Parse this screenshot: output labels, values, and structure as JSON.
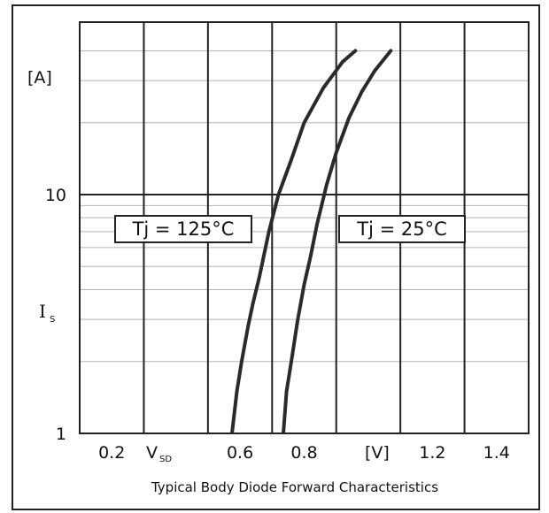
{
  "chart_data": {
    "type": "line",
    "title": "",
    "caption": "Typical Body Diode Forward Characteristics",
    "xaxis": {
      "symbol": "V",
      "symbol_sub": "SD",
      "unit": "[V]",
      "range": [
        0.1,
        1.5
      ],
      "tick_values": [
        0.2,
        0.6,
        0.8,
        1.2,
        1.4
      ],
      "tick_labels": [
        "0.2",
        "0.6",
        "0.8",
        "1.2",
        "1.4"
      ],
      "gridlines": [
        0.3,
        0.5,
        0.7,
        0.9,
        1.1,
        1.3
      ]
    },
    "yaxis": {
      "scale": "log",
      "symbol": "I",
      "symbol_sub": "S",
      "unit": "[A]",
      "range": [
        1,
        40
      ],
      "tick_values": [
        1,
        10
      ],
      "tick_labels": [
        "1",
        "10"
      ]
    },
    "grid": true,
    "series": [
      {
        "name": "Tj = 125°C",
        "x": [
          0.575,
          0.59,
          0.605,
          0.625,
          0.64,
          0.66,
          0.69,
          0.72,
          0.76,
          0.8,
          0.86,
          0.92,
          0.96
        ],
        "y": [
          1,
          1.5,
          2.0,
          2.8,
          3.5,
          4.5,
          7.0,
          10,
          14,
          20,
          28,
          36,
          40
        ]
      },
      {
        "name": "Tj = 25°C",
        "x": [
          0.735,
          0.745,
          0.76,
          0.78,
          0.8,
          0.82,
          0.84,
          0.87,
          0.9,
          0.94,
          0.98,
          1.02,
          1.07
        ],
        "y": [
          1,
          1.5,
          2.0,
          3.0,
          4.2,
          5.5,
          7.5,
          11,
          15,
          21,
          27,
          33,
          40
        ]
      }
    ]
  }
}
